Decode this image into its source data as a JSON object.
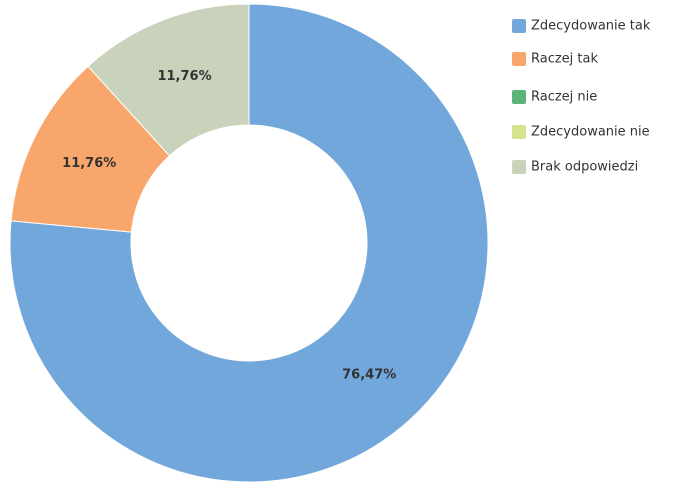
{
  "chart_data": {
    "type": "pie",
    "categories": [
      "Zdecydowanie tak",
      "Raczej tak",
      "Raczej nie",
      "Zdecydowanie nie",
      "Brak odpowiedzi"
    ],
    "values": [
      76.47,
      11.76,
      0,
      0,
      11.76
    ],
    "value_labels": [
      "76,47%",
      "11,76%",
      null,
      null,
      "11,76%"
    ],
    "colors": [
      "#72a7dc",
      "#f9a66c",
      "#5cb37a",
      "#d6e28c",
      "#c9d3bb"
    ],
    "legend": "right"
  }
}
